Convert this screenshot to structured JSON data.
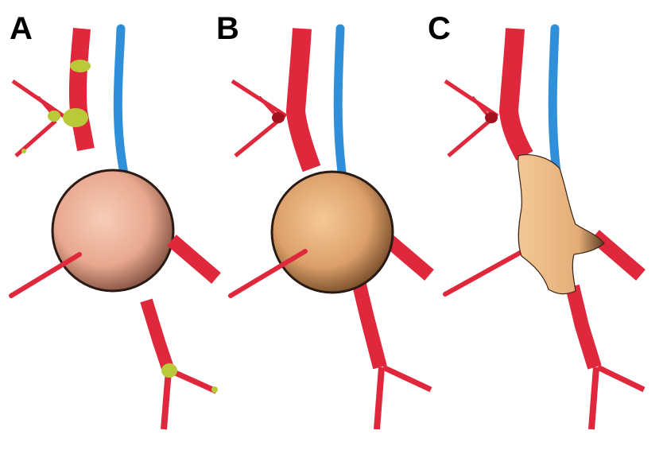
{
  "panels": [
    {
      "label": "A"
    },
    {
      "label": "B"
    },
    {
      "label": "C"
    }
  ],
  "colors": {
    "artery": "#e0283c",
    "artery_dark": "#a3121f",
    "vein": "#2f8fd9",
    "sphere_a": "#f2b7a0",
    "sphere_b": "#e9b27e",
    "soma_c": "#eebd8c",
    "junction_marker": "#b9c93a",
    "outline": "#2a1a14"
  }
}
